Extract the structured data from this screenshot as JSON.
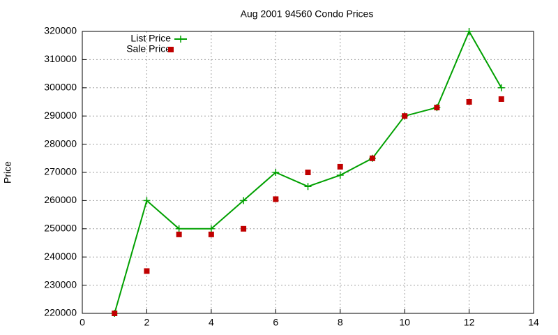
{
  "chart_data": {
    "type": "line",
    "title": "Aug 2001 94560 Condo Prices",
    "y_label": "Price",
    "x": [
      1,
      2,
      3,
      4,
      5,
      6,
      7,
      8,
      9,
      10,
      11,
      12,
      13
    ],
    "series": [
      {
        "name": "List Price",
        "color": "#00a000",
        "mode": "linespoints",
        "values": [
          220000,
          260000,
          250000,
          250000,
          260000,
          270000,
          265000,
          269000,
          275000,
          290000,
          293000,
          320000,
          300000
        ]
      },
      {
        "name": "Sale Price",
        "color": "#c00000",
        "mode": "points",
        "values": [
          220000,
          235000,
          248000,
          248000,
          250000,
          260500,
          270000,
          272000,
          275000,
          290000,
          293000,
          295000,
          296000
        ]
      }
    ],
    "xlim": [
      0,
      14
    ],
    "xticks": [
      0,
      2,
      4,
      6,
      8,
      10,
      12,
      14
    ],
    "ylim": [
      220000,
      320000
    ],
    "yticks": [
      220000,
      230000,
      240000,
      250000,
      260000,
      270000,
      280000,
      290000,
      300000,
      310000,
      320000
    ],
    "grid": true,
    "legend": "top-left"
  }
}
